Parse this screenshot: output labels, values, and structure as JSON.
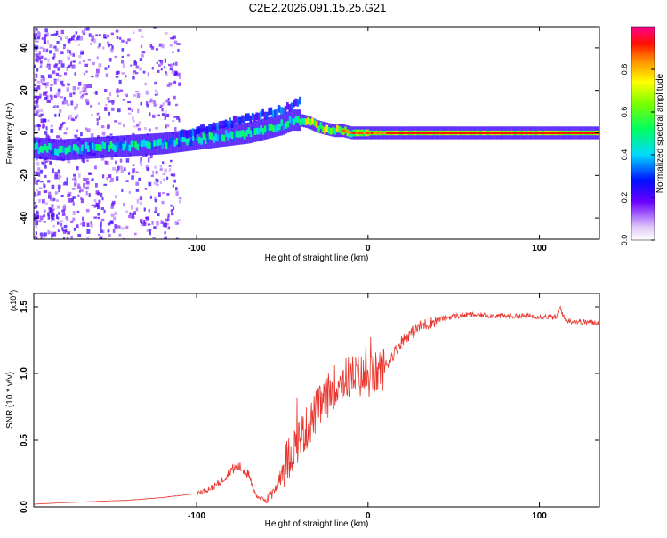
{
  "title": "C2E2.2026.091.15.25.G21",
  "chart_data": [
    {
      "type": "heatmap",
      "xlabel": "Height of straight line (km)",
      "ylabel": "Frequency (Hz)",
      "xlim": [
        -195,
        135
      ],
      "ylim": [
        -50,
        50
      ],
      "xticks": [
        -100,
        0,
        100
      ],
      "xtick_labels": [
        "-100",
        "0",
        "100"
      ],
      "yticks": [
        -40,
        -20,
        0,
        20,
        40
      ],
      "ytick_labels": [
        "-40",
        "-20",
        "0",
        "20",
        "40"
      ],
      "colorbar": {
        "label": "Normalized spectral amplitude",
        "range": [
          0,
          1
        ],
        "ticks": [
          0,
          0.2,
          0.4,
          0.6,
          0.8
        ],
        "tick_labels": [
          "0.0",
          "0.2",
          "0.4",
          "0.6",
          "0.8"
        ],
        "colors": [
          "#ffffff",
          "#d6b8f0",
          "#6600ff",
          "#0000ff",
          "#00e0ff",
          "#00ff40",
          "#ffff00",
          "#ff8000",
          "#ff0000",
          "#ff0080"
        ]
      },
      "ridge": {
        "x": [
          -195,
          -180,
          -160,
          -140,
          -120,
          -110,
          -100,
          -90,
          -80,
          -70,
          -60,
          -50,
          -45,
          -40,
          -35,
          -30,
          -25,
          -20,
          -15,
          -10,
          -5,
          0,
          10,
          30,
          60,
          100,
          135
        ],
        "y": [
          -7,
          -8,
          -7,
          -6,
          -5,
          -4,
          -3,
          -2,
          -1,
          0,
          2,
          4,
          6,
          6,
          5,
          3,
          2,
          1,
          1,
          0,
          0,
          0,
          0,
          0,
          0,
          0,
          0
        ],
        "upper_branch": {
          "x": [
            -110,
            -100,
            -90,
            -80,
            -70,
            -60,
            -50,
            -45,
            -40
          ],
          "y": [
            -1,
            1,
            3,
            5,
            7,
            9,
            11,
            13,
            15
          ]
        }
      }
    },
    {
      "type": "line",
      "xlabel": "Height of straight line (km)",
      "ylabel": "SNR (10 * v/v)",
      "scale_label": "(x10",
      "scale_exp": "4",
      "scale_close": ")",
      "xlim": [
        -195,
        135
      ],
      "ylim": [
        0,
        1.6
      ],
      "xticks": [
        -100,
        0,
        100
      ],
      "xtick_labels": [
        "-100",
        "0",
        "100"
      ],
      "yticks": [
        0,
        0.5,
        1.0,
        1.5
      ],
      "ytick_labels": [
        "0.0",
        "0.5",
        "1.0",
        "1.5"
      ],
      "line_color": "#e8362e",
      "series": [
        {
          "name": "SNR",
          "x": [
            -195,
            -180,
            -160,
            -140,
            -120,
            -100,
            -90,
            -85,
            -80,
            -75,
            -70,
            -65,
            -60,
            -55,
            -50,
            -45,
            -40,
            -35,
            -30,
            -25,
            -20,
            -15,
            -10,
            -5,
            0,
            5,
            10,
            15,
            20,
            30,
            40,
            50,
            60,
            80,
            100,
            110,
            112,
            115,
            120,
            135
          ],
          "y": [
            0.02,
            0.03,
            0.04,
            0.05,
            0.07,
            0.1,
            0.15,
            0.2,
            0.28,
            0.3,
            0.25,
            0.08,
            0.05,
            0.1,
            0.28,
            0.4,
            0.52,
            0.6,
            0.72,
            0.8,
            0.9,
            0.95,
            0.98,
            0.98,
            0.97,
            1.0,
            1.05,
            1.15,
            1.25,
            1.35,
            1.4,
            1.43,
            1.44,
            1.43,
            1.43,
            1.42,
            1.5,
            1.4,
            1.39,
            1.38
          ]
        }
      ]
    }
  ]
}
